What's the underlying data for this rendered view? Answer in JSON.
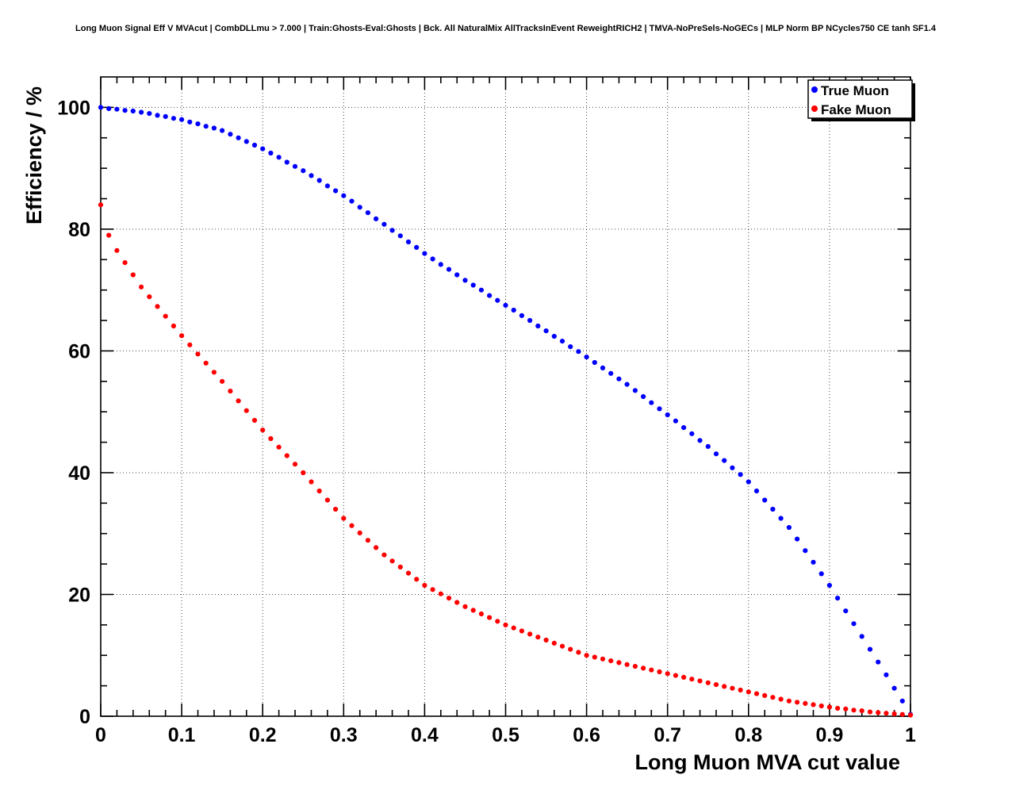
{
  "chart_data": {
    "type": "scatter",
    "title": "Long Muon Signal Eff V MVAcut | CombDLLmu > 7.000 | Train:Ghosts-Eval:Ghosts | Bck. All NaturalMix AllTracksInEvent ReweightRICH2 | TMVA-NoPreSels-NoGECs | MLP Norm BP NCycles750 CE tanh SF1.4",
    "xlabel": "Long Muon MVA cut value",
    "ylabel": "Efficiency / %",
    "xlim": [
      0,
      1
    ],
    "ylim": [
      0,
      105
    ],
    "grid": true,
    "grid_style": "dotted",
    "legend_position": "top-right",
    "x_ticks": {
      "values": [
        0,
        0.1,
        0.2,
        0.3,
        0.4,
        0.5,
        0.6,
        0.7,
        0.8,
        0.9,
        1
      ],
      "labels": [
        "0",
        "0.1",
        "0.2",
        "0.3",
        "0.4",
        "0.5",
        "0.6",
        "0.7",
        "0.8",
        "0.9",
        "1"
      ],
      "minor_step": 0.02
    },
    "y_ticks": {
      "values": [
        0,
        20,
        40,
        60,
        80,
        100
      ],
      "labels": [
        "0",
        "20",
        "40",
        "60",
        "80",
        "100"
      ],
      "minor_step": 5
    },
    "x": {
      "start": 0,
      "step": 0.01
    },
    "series": [
      {
        "name": "True Muon",
        "color": "#0000ff",
        "marker": "dot",
        "values": [
          100.0,
          99.8,
          99.7,
          99.5,
          99.4,
          99.2,
          99.0,
          98.7,
          98.5,
          98.2,
          98.0,
          97.6,
          97.3,
          96.9,
          96.6,
          96.2,
          95.6,
          95.0,
          94.4,
          93.8,
          93.2,
          92.5,
          91.8,
          91.0,
          90.3,
          89.6,
          88.8,
          88.0,
          87.1,
          86.3,
          85.5,
          84.6,
          83.6,
          82.7,
          81.7,
          80.8,
          79.8,
          78.9,
          77.9,
          77.0,
          76.0,
          75.1,
          74.2,
          73.4,
          72.5,
          71.6,
          70.8,
          70.0,
          69.1,
          68.3,
          67.5,
          66.7,
          65.8,
          65.0,
          64.1,
          63.3,
          62.4,
          61.6,
          60.7,
          59.9,
          59.0,
          58.1,
          57.2,
          56.3,
          55.4,
          54.5,
          53.5,
          52.5,
          51.5,
          50.5,
          49.5,
          48.5,
          47.4,
          46.4,
          45.3,
          44.3,
          43.1,
          42.0,
          40.8,
          39.7,
          38.5,
          37.0,
          35.5,
          34.0,
          32.5,
          31.0,
          29.1,
          27.2,
          25.3,
          23.4,
          21.5,
          19.4,
          17.3,
          15.2,
          13.1,
          11.0,
          8.9,
          6.8,
          4.6,
          2.5,
          0.3
        ]
      },
      {
        "name": "Fake Muon",
        "color": "#ff0000",
        "marker": "dot",
        "values": [
          84.0,
          79.0,
          76.5,
          74.5,
          72.5,
          70.5,
          68.9,
          67.3,
          65.7,
          64.1,
          62.5,
          61.0,
          59.5,
          58.0,
          56.5,
          55.0,
          53.4,
          51.8,
          50.2,
          48.6,
          47.0,
          45.6,
          44.2,
          42.8,
          41.4,
          40.0,
          38.5,
          37.0,
          35.5,
          34.0,
          32.5,
          31.3,
          30.1,
          28.9,
          27.7,
          26.5,
          25.5,
          24.5,
          23.5,
          22.5,
          21.5,
          20.8,
          20.1,
          19.4,
          18.7,
          18.0,
          17.4,
          16.8,
          16.2,
          15.6,
          15.0,
          14.5,
          14.0,
          13.5,
          13.0,
          12.5,
          12.0,
          11.5,
          11.0,
          10.5,
          10.0,
          9.7,
          9.4,
          9.1,
          8.8,
          8.5,
          8.2,
          7.9,
          7.6,
          7.3,
          7.0,
          6.7,
          6.4,
          6.1,
          5.8,
          5.5,
          5.2,
          4.9,
          4.6,
          4.3,
          4.0,
          3.7,
          3.4,
          3.1,
          2.8,
          2.5,
          2.3,
          2.1,
          1.9,
          1.7,
          1.5,
          1.3,
          1.2,
          1.0,
          0.9,
          0.7,
          0.6,
          0.5,
          0.4,
          0.3,
          0.2
        ]
      }
    ]
  }
}
